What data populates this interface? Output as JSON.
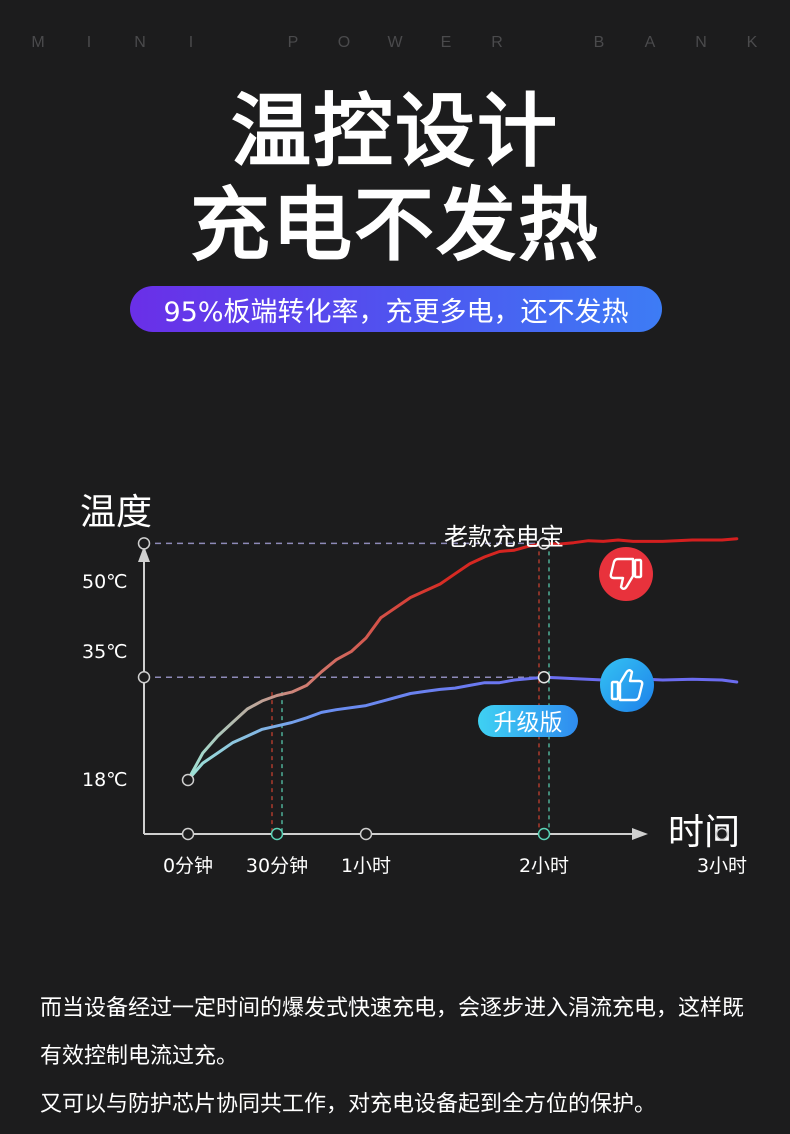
{
  "brand_letters": [
    "M",
    "I",
    "N",
    "I",
    "",
    "P",
    "O",
    "W",
    "E",
    "R",
    "",
    "B",
    "A",
    "N",
    "K"
  ],
  "headline": {
    "line1": "温控设计",
    "line2": "充电不发热"
  },
  "pill_text": "95%板端转化率，充更多电，还不发热",
  "colors": {
    "background": "#1c1c1d",
    "old_series": "#d41f1f",
    "new_series": "#6b7cf2",
    "pill_start": "#6a2fe8",
    "pill_end": "#3d7cf5",
    "thumb_down": "#e8323c",
    "thumb_up": "#27a7f0"
  },
  "chart_data": {
    "type": "line",
    "ylabel": "温度",
    "xlabel": "时间",
    "x_ticks": [
      {
        "label": "0分钟",
        "minutes": 0
      },
      {
        "label": "30分钟",
        "minutes": 30
      },
      {
        "label": "1小时",
        "minutes": 60
      },
      {
        "label": "2小时",
        "minutes": 120
      },
      {
        "label": "3小时",
        "minutes": 180
      }
    ],
    "y_ticks": [
      {
        "label": "18℃",
        "value": 18
      },
      {
        "label": "35℃",
        "value": 35
      },
      {
        "label": "50℃",
        "value": 50
      }
    ],
    "series": [
      {
        "name": "老款充电宝",
        "icon": "thumbs-down-icon",
        "points": [
          [
            0,
            18
          ],
          [
            5,
            22
          ],
          [
            10,
            24.5
          ],
          [
            15,
            26.5
          ],
          [
            20,
            28.5
          ],
          [
            25,
            29.7
          ],
          [
            30,
            30.5
          ],
          [
            35,
            31
          ],
          [
            40,
            32
          ],
          [
            45,
            34
          ],
          [
            50,
            35.8
          ],
          [
            55,
            37
          ],
          [
            60,
            39
          ],
          [
            65,
            42
          ],
          [
            70,
            43.5
          ],
          [
            75,
            45
          ],
          [
            80,
            46
          ],
          [
            85,
            47
          ],
          [
            90,
            48.5
          ],
          [
            95,
            50
          ],
          [
            100,
            51
          ],
          [
            105,
            51.8
          ],
          [
            110,
            52
          ],
          [
            115,
            52.6
          ],
          [
            120,
            53
          ],
          [
            125,
            52.9
          ],
          [
            130,
            53.1
          ],
          [
            135,
            53.4
          ],
          [
            140,
            53.3
          ],
          [
            145,
            53.5
          ],
          [
            150,
            53.3
          ],
          [
            160,
            53.3
          ],
          [
            170,
            53.5
          ],
          [
            180,
            53.5
          ],
          [
            185,
            53.7
          ]
        ],
        "markers": [
          [
            120,
            53
          ]
        ]
      },
      {
        "name": "升级版",
        "icon": "thumbs-up-icon",
        "points": [
          [
            0,
            18
          ],
          [
            5,
            20.5
          ],
          [
            10,
            22
          ],
          [
            15,
            23.5
          ],
          [
            20,
            24.5
          ],
          [
            25,
            25.5
          ],
          [
            30,
            26
          ],
          [
            35,
            26.5
          ],
          [
            40,
            27.2
          ],
          [
            45,
            28
          ],
          [
            50,
            28.4
          ],
          [
            60,
            29
          ],
          [
            65,
            29.6
          ],
          [
            70,
            30.2
          ],
          [
            75,
            30.8
          ],
          [
            80,
            31.1
          ],
          [
            85,
            31.4
          ],
          [
            90,
            31.6
          ],
          [
            95,
            32
          ],
          [
            100,
            32.4
          ],
          [
            105,
            32.4
          ],
          [
            110,
            32.8
          ],
          [
            115,
            33
          ],
          [
            120,
            33.2
          ],
          [
            125,
            33.1
          ],
          [
            130,
            33
          ],
          [
            140,
            32.8
          ],
          [
            150,
            33
          ],
          [
            160,
            32.8
          ],
          [
            170,
            32.9
          ],
          [
            180,
            32.8
          ],
          [
            185,
            32.5
          ]
        ],
        "markers": [
          [
            120,
            33.2
          ]
        ]
      }
    ],
    "reference_levels": [
      53,
      33.2
    ],
    "highlight_times": [
      30,
      120
    ]
  },
  "body": {
    "paragraph1": "而当设备经过一定时间的爆发式快速充电，会逐步进入涓流充电，这样既有效控制电流过充。",
    "paragraph2": "又可以与防护芯片协同共工作，对充电设备起到全方位的保护。"
  }
}
